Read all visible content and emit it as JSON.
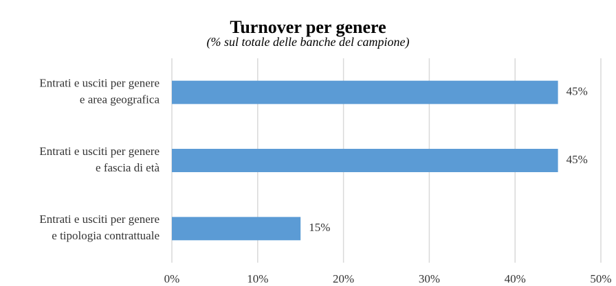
{
  "chart_data": {
    "type": "hbar",
    "title": "Turnover per genere",
    "subtitle": "(% sul totale delle banche del campione)",
    "categories": [
      [
        "Entrati e usciti per genere",
        "e area geografica"
      ],
      [
        "Entrati e usciti per genere",
        "e fascia di età"
      ],
      [
        "Entrati e usciti per genere",
        "e tipologia contrattuale"
      ]
    ],
    "values": [
      45,
      45,
      15
    ],
    "value_labels": [
      "45%",
      "45%",
      "15%"
    ],
    "color": "#5b9bd5",
    "xlim": [
      0,
      50
    ],
    "xticks": [
      {
        "value": 0,
        "label": "0%"
      },
      {
        "value": 10,
        "label": "10%"
      },
      {
        "value": 20,
        "label": "20%"
      },
      {
        "value": 30,
        "label": "30%"
      },
      {
        "value": 40,
        "label": "40%"
      },
      {
        "value": 50,
        "label": "50%"
      }
    ],
    "grid": true
  }
}
